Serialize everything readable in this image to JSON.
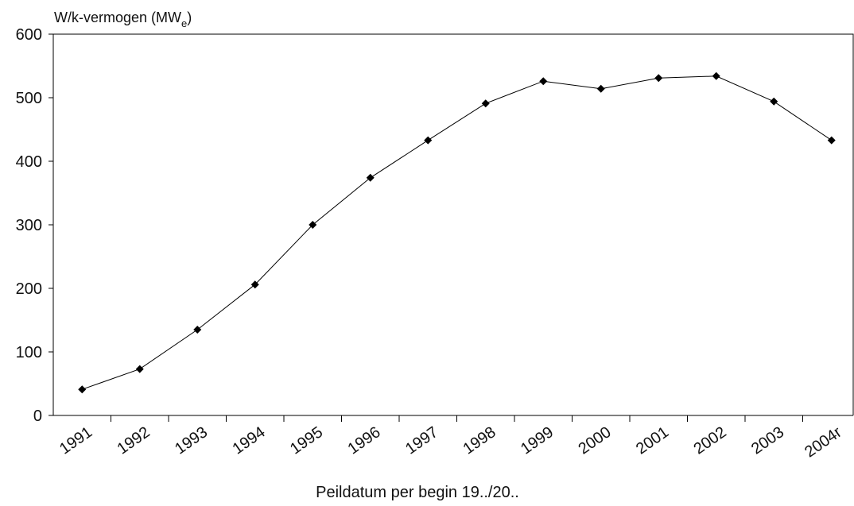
{
  "chart_data": {
    "type": "line",
    "y_label": [
      "W/k-vermogen (MW",
      "e",
      ")"
    ],
    "x_label": "Peildatum per begin 19../20..",
    "categories": [
      "1991",
      "1992",
      "1993",
      "1994",
      "1995",
      "1996",
      "1997",
      "1998",
      "1999",
      "2000",
      "2001",
      "2002",
      "2003",
      "2004r"
    ],
    "values": [
      41,
      73,
      135,
      206,
      300,
      374,
      433,
      491,
      526,
      514,
      531,
      534,
      494,
      433
    ],
    "color": "#000000",
    "ylim": [
      0,
      600
    ],
    "yticks": [
      0,
      100,
      200,
      300,
      400,
      500,
      600
    ]
  }
}
